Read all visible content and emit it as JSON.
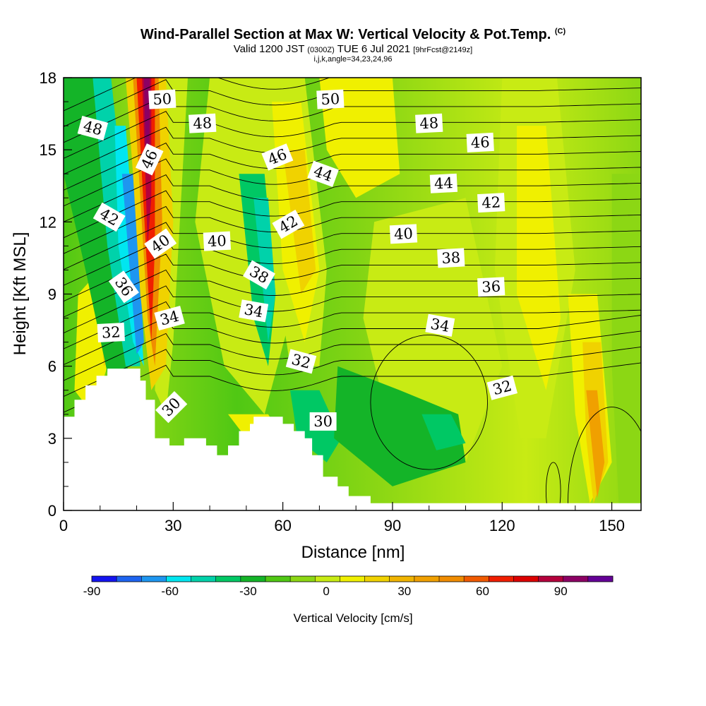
{
  "title": {
    "main": "Wind-Parallel Section at Max W: Vertical Velocity & Pot.Temp.",
    "copyright": "(C)",
    "valid_prefix": "Valid 1200 JST",
    "valid_utc": "(0300Z)",
    "valid_date": "TUE 6 Jul 2021",
    "forecast": "[9hrFcst@2149z]",
    "indices": "i,j,k,angle=34,23,24,96"
  },
  "chart_data": {
    "type": "heatmap",
    "xlabel": "Distance [nm]",
    "ylabel": "Height [Kft MSL]",
    "xlim": [
      0,
      158
    ],
    "ylim": [
      0,
      18
    ],
    "xticks": [
      0,
      30,
      60,
      90,
      120,
      150
    ],
    "yticks": [
      0,
      3,
      6,
      9,
      12,
      15,
      18
    ],
    "colorbar": {
      "label": "Vertical Velocity [cm/s]",
      "min": -90,
      "max": 110,
      "step": 10,
      "ticks": [
        -90,
        -60,
        -30,
        0,
        30,
        60,
        90
      ],
      "colors": [
        "#1414f0",
        "#1e64f0",
        "#1e96f0",
        "#00e6f0",
        "#00d2aa",
        "#00c864",
        "#14b428",
        "#50c814",
        "#8cd714",
        "#c8eb14",
        "#f0f000",
        "#f0d200",
        "#f0b400",
        "#f0a000",
        "#f08c00",
        "#f05a00",
        "#f01e00",
        "#dc0000",
        "#b4003c",
        "#8c0064",
        "#640096"
      ]
    },
    "contour_labels": [
      {
        "value": "50",
        "x": 27,
        "y": 17.1,
        "angle": -3
      },
      {
        "value": "50",
        "x": 73,
        "y": 17.1,
        "angle": -3
      },
      {
        "value": "48",
        "x": 8,
        "y": 15.9,
        "angle": 15
      },
      {
        "value": "48",
        "x": 38,
        "y": 16.1,
        "angle": -3
      },
      {
        "value": "48",
        "x": 100,
        "y": 16.1,
        "angle": -3
      },
      {
        "value": "46",
        "x": 23.5,
        "y": 14.6,
        "angle": -65
      },
      {
        "value": "46",
        "x": 58.5,
        "y": 14.7,
        "angle": -22
      },
      {
        "value": "46",
        "x": 114,
        "y": 15.3,
        "angle": -3
      },
      {
        "value": "44",
        "x": 71,
        "y": 14.0,
        "angle": 20
      },
      {
        "value": "44",
        "x": 104,
        "y": 13.6,
        "angle": -3
      },
      {
        "value": "42",
        "x": 12.5,
        "y": 12.2,
        "angle": 30
      },
      {
        "value": "42",
        "x": 61.5,
        "y": 11.9,
        "angle": -30
      },
      {
        "value": "42",
        "x": 117,
        "y": 12.8,
        "angle": -3
      },
      {
        "value": "40",
        "x": 26.5,
        "y": 11.1,
        "angle": -35
      },
      {
        "value": "40",
        "x": 42,
        "y": 11.2,
        "angle": -3
      },
      {
        "value": "40",
        "x": 93,
        "y": 11.5,
        "angle": -3
      },
      {
        "value": "38",
        "x": 53.5,
        "y": 9.8,
        "angle": 30
      },
      {
        "value": "38",
        "x": 106,
        "y": 10.5,
        "angle": -3
      },
      {
        "value": "36",
        "x": 16.5,
        "y": 9.3,
        "angle": 55
      },
      {
        "value": "36",
        "x": 117,
        "y": 9.3,
        "angle": -3
      },
      {
        "value": "34",
        "x": 29,
        "y": 8.0,
        "angle": -15
      },
      {
        "value": "34",
        "x": 52,
        "y": 8.3,
        "angle": 10
      },
      {
        "value": "34",
        "x": 103,
        "y": 7.7,
        "angle": 10
      },
      {
        "value": "32",
        "x": 13,
        "y": 7.4,
        "angle": -3
      },
      {
        "value": "32",
        "x": 65,
        "y": 6.2,
        "angle": 15
      },
      {
        "value": "32",
        "x": 120,
        "y": 5.1,
        "angle": -15
      },
      {
        "value": "30",
        "x": 29.5,
        "y": 4.3,
        "angle": -45
      },
      {
        "value": "30",
        "x": 71,
        "y": 3.7,
        "angle": 0
      }
    ],
    "terrain_height_kft": [
      [
        0,
        3.9
      ],
      [
        3,
        3.9
      ],
      [
        3,
        4.6
      ],
      [
        6,
        4.6
      ],
      [
        6,
        5.2
      ],
      [
        9,
        5.2
      ],
      [
        9,
        5.6
      ],
      [
        12,
        5.6
      ],
      [
        12,
        5.9
      ],
      [
        21,
        5.9
      ],
      [
        21,
        5.4
      ],
      [
        22.5,
        5.4
      ],
      [
        22.5,
        4.6
      ],
      [
        25,
        4.6
      ],
      [
        25,
        3.0
      ],
      [
        29,
        3.0
      ],
      [
        29,
        2.7
      ],
      [
        33,
        2.7
      ],
      [
        33,
        3.0
      ],
      [
        39,
        3.0
      ],
      [
        39,
        2.7
      ],
      [
        42,
        2.7
      ],
      [
        42,
        2.3
      ],
      [
        45,
        2.3
      ],
      [
        45,
        2.7
      ],
      [
        48,
        2.7
      ],
      [
        48,
        3.3
      ],
      [
        51,
        3.3
      ],
      [
        51,
        3.6
      ],
      [
        52,
        3.6
      ],
      [
        52,
        3.9
      ],
      [
        60,
        3.9
      ],
      [
        60,
        3.6
      ],
      [
        63,
        3.6
      ],
      [
        63,
        3.3
      ],
      [
        66,
        3.3
      ],
      [
        66,
        3.0
      ],
      [
        68,
        3.0
      ],
      [
        68,
        2.3
      ],
      [
        71,
        2.3
      ],
      [
        71,
        1.4
      ],
      [
        75,
        1.4
      ],
      [
        75,
        1.0
      ],
      [
        78,
        1.0
      ],
      [
        78,
        0.6
      ],
      [
        84,
        0.6
      ],
      [
        84,
        0.3
      ],
      [
        158,
        0.3
      ]
    ]
  }
}
